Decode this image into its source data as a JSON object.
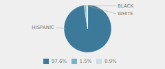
{
  "chart_data": {
    "type": "pie",
    "categories": [
      "HISPANIC",
      "BLACK",
      "WHITE"
    ],
    "values": [
      97.6,
      1.5,
      0.9
    ],
    "value_labels": [
      "97.6%",
      "1.5%",
      "0.9%"
    ],
    "colors": [
      "#3d7a9a",
      "#7ab3c5",
      "#ccdde6"
    ],
    "legend": "bottom"
  }
}
